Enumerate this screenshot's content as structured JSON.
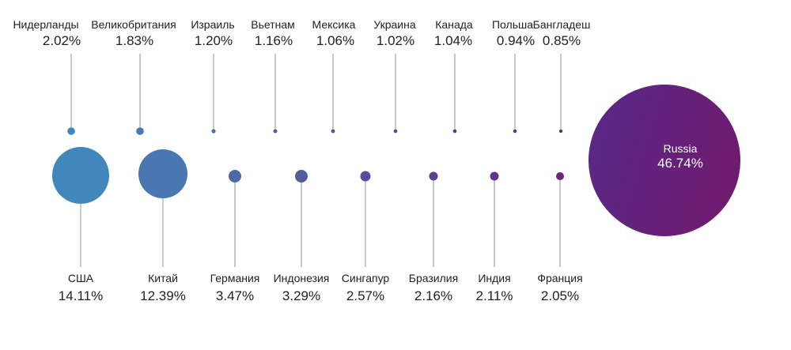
{
  "chart_data": {
    "type": "bubble",
    "title": "",
    "unit": "%",
    "top_row": [
      {
        "name": "Нидерланды",
        "value": 2.02,
        "label": "2.02%"
      },
      {
        "name": "Великобритания",
        "value": 1.83,
        "label": "1.83%"
      },
      {
        "name": "Израиль",
        "value": 1.2,
        "label": "1.20%"
      },
      {
        "name": "Вьетнам",
        "value": 1.16,
        "label": "1.16%"
      },
      {
        "name": "Мексика",
        "value": 1.06,
        "label": "1.06%"
      },
      {
        "name": "Украина",
        "value": 1.02,
        "label": "1.02%"
      },
      {
        "name": "Канада",
        "value": 1.04,
        "label": "1.04%"
      },
      {
        "name": "Польша",
        "value": 0.94,
        "label": "0.94%"
      },
      {
        "name": "Бангладеш",
        "value": 0.85,
        "label": "0.85%"
      }
    ],
    "bottom_row": [
      {
        "name": "США",
        "value": 14.11,
        "label": "14.11%"
      },
      {
        "name": "Китай",
        "value": 12.39,
        "label": "12.39%"
      },
      {
        "name": "Германия",
        "value": 3.47,
        "label": "3.47%"
      },
      {
        "name": "Индонезия",
        "value": 3.29,
        "label": "3.29%"
      },
      {
        "name": "Сингапур",
        "value": 2.57,
        "label": "2.57%"
      },
      {
        "name": "Бразилия",
        "value": 2.16,
        "label": "2.16%"
      },
      {
        "name": "Индия",
        "value": 2.11,
        "label": "2.11%"
      },
      {
        "name": "Франция",
        "value": 2.05,
        "label": "2.05%"
      }
    ],
    "highlight": {
      "name": "Russia",
      "value": 46.74,
      "label": "46.74%"
    },
    "colors": {
      "start": "#3f8ec0",
      "end": "#6a1f78",
      "line": "#b5b5b5"
    }
  }
}
